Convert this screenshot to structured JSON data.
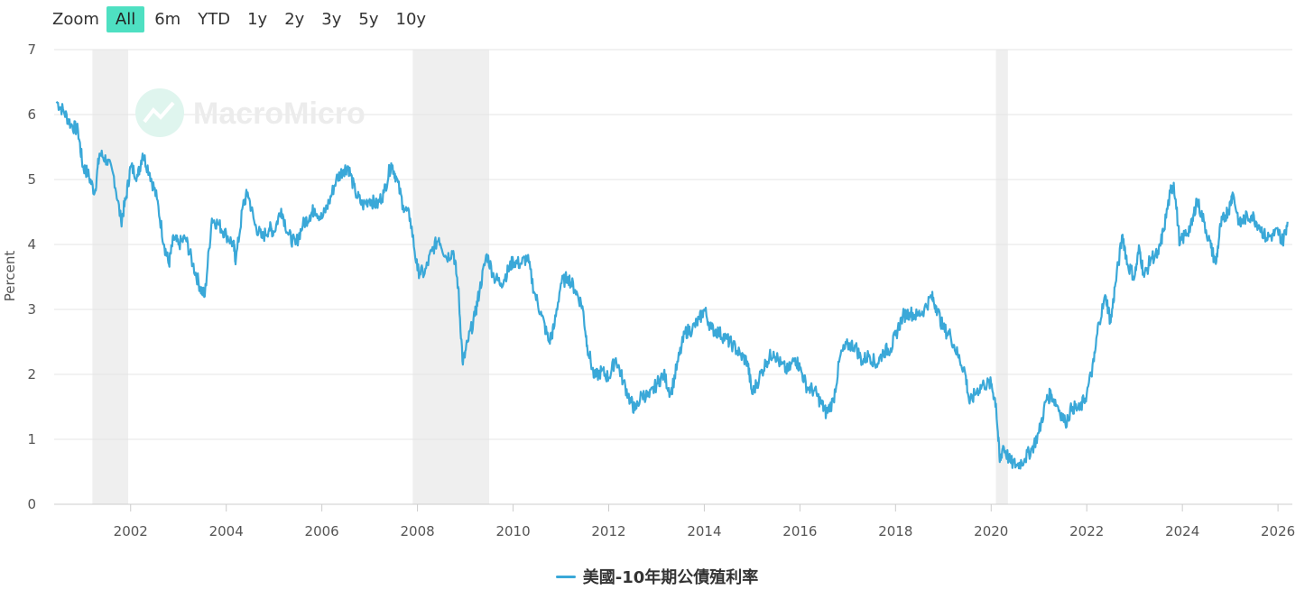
{
  "zoom": {
    "label": "Zoom",
    "options": [
      "All",
      "6m",
      "YTD",
      "1y",
      "2y",
      "3y",
      "5y",
      "10y"
    ],
    "selected": "All"
  },
  "watermark": {
    "text": "MacroMicro"
  },
  "chart_data": {
    "type": "line",
    "title": "",
    "ylabel": "Percent",
    "xlabel": "",
    "ylim": [
      0,
      7
    ],
    "xlim": [
      2000.4,
      2026.3
    ],
    "yticks": [
      0,
      1,
      2,
      3,
      4,
      5,
      6,
      7
    ],
    "xticks": [
      2002,
      2004,
      2006,
      2008,
      2010,
      2012,
      2014,
      2016,
      2018,
      2020,
      2022,
      2024,
      2026
    ],
    "grid": true,
    "legend_position": "bottom-center",
    "recession_bands": [
      [
        2001.2,
        2001.95
      ],
      [
        2007.9,
        2009.5
      ],
      [
        2020.1,
        2020.35
      ]
    ],
    "series": [
      {
        "name": "美國-10年期公債殖利率",
        "color": "#3aa8d8",
        "points": [
          [
            2000.45,
            6.2
          ],
          [
            2000.6,
            6.05
          ],
          [
            2000.75,
            5.85
          ],
          [
            2000.9,
            5.75
          ],
          [
            2001.0,
            5.2
          ],
          [
            2001.1,
            5.1
          ],
          [
            2001.25,
            4.8
          ],
          [
            2001.35,
            5.4
          ],
          [
            2001.5,
            5.3
          ],
          [
            2001.65,
            5.05
          ],
          [
            2001.8,
            4.35
          ],
          [
            2001.9,
            4.7
          ],
          [
            2002.0,
            5.2
          ],
          [
            2002.15,
            5.05
          ],
          [
            2002.25,
            5.4
          ],
          [
            2002.4,
            5.1
          ],
          [
            2002.55,
            4.7
          ],
          [
            2002.7,
            4.0
          ],
          [
            2002.8,
            3.7
          ],
          [
            2002.9,
            4.1
          ],
          [
            2003.0,
            4.0
          ],
          [
            2003.15,
            4.1
          ],
          [
            2003.3,
            3.7
          ],
          [
            2003.45,
            3.35
          ],
          [
            2003.55,
            3.2
          ],
          [
            2003.7,
            4.4
          ],
          [
            2003.85,
            4.3
          ],
          [
            2004.0,
            4.15
          ],
          [
            2004.15,
            4.0
          ],
          [
            2004.2,
            3.75
          ],
          [
            2004.35,
            4.6
          ],
          [
            2004.45,
            4.8
          ],
          [
            2004.6,
            4.3
          ],
          [
            2004.75,
            4.1
          ],
          [
            2004.9,
            4.25
          ],
          [
            2005.0,
            4.2
          ],
          [
            2005.15,
            4.55
          ],
          [
            2005.3,
            4.15
          ],
          [
            2005.45,
            4.0
          ],
          [
            2005.6,
            4.3
          ],
          [
            2005.75,
            4.45
          ],
          [
            2005.85,
            4.55
          ],
          [
            2006.0,
            4.4
          ],
          [
            2006.15,
            4.65
          ],
          [
            2006.3,
            5.0
          ],
          [
            2006.45,
            5.15
          ],
          [
            2006.55,
            5.2
          ],
          [
            2006.7,
            4.8
          ],
          [
            2006.85,
            4.6
          ],
          [
            2007.0,
            4.7
          ],
          [
            2007.15,
            4.6
          ],
          [
            2007.3,
            4.8
          ],
          [
            2007.45,
            5.25
          ],
          [
            2007.55,
            5.05
          ],
          [
            2007.7,
            4.6
          ],
          [
            2007.85,
            4.4
          ],
          [
            2008.0,
            3.6
          ],
          [
            2008.15,
            3.55
          ],
          [
            2008.3,
            3.9
          ],
          [
            2008.45,
            4.1
          ],
          [
            2008.6,
            3.8
          ],
          [
            2008.75,
            3.9
          ],
          [
            2008.85,
            3.35
          ],
          [
            2008.95,
            2.15
          ],
          [
            2009.05,
            2.5
          ],
          [
            2009.2,
            2.9
          ],
          [
            2009.3,
            3.3
          ],
          [
            2009.45,
            3.85
          ],
          [
            2009.6,
            3.5
          ],
          [
            2009.75,
            3.4
          ],
          [
            2009.9,
            3.6
          ],
          [
            2010.0,
            3.75
          ],
          [
            2010.15,
            3.7
          ],
          [
            2010.3,
            3.8
          ],
          [
            2010.45,
            3.25
          ],
          [
            2010.6,
            2.9
          ],
          [
            2010.75,
            2.5
          ],
          [
            2010.85,
            2.7
          ],
          [
            2011.0,
            3.4
          ],
          [
            2011.15,
            3.5
          ],
          [
            2011.3,
            3.3
          ],
          [
            2011.45,
            3.05
          ],
          [
            2011.55,
            2.45
          ],
          [
            2011.7,
            1.95
          ],
          [
            2011.85,
            2.05
          ],
          [
            2012.0,
            1.95
          ],
          [
            2012.15,
            2.25
          ],
          [
            2012.3,
            1.9
          ],
          [
            2012.45,
            1.6
          ],
          [
            2012.55,
            1.45
          ],
          [
            2012.7,
            1.7
          ],
          [
            2012.85,
            1.65
          ],
          [
            2013.0,
            1.85
          ],
          [
            2013.15,
            2.0
          ],
          [
            2013.3,
            1.7
          ],
          [
            2013.45,
            2.2
          ],
          [
            2013.6,
            2.65
          ],
          [
            2013.75,
            2.7
          ],
          [
            2013.9,
            2.85
          ],
          [
            2014.0,
            3.0
          ],
          [
            2014.15,
            2.7
          ],
          [
            2014.3,
            2.65
          ],
          [
            2014.45,
            2.55
          ],
          [
            2014.6,
            2.45
          ],
          [
            2014.75,
            2.3
          ],
          [
            2014.9,
            2.2
          ],
          [
            2015.0,
            1.7
          ],
          [
            2015.15,
            1.95
          ],
          [
            2015.3,
            2.2
          ],
          [
            2015.45,
            2.35
          ],
          [
            2015.6,
            2.15
          ],
          [
            2015.75,
            2.05
          ],
          [
            2015.9,
            2.25
          ],
          [
            2016.0,
            2.1
          ],
          [
            2016.15,
            1.8
          ],
          [
            2016.3,
            1.75
          ],
          [
            2016.45,
            1.55
          ],
          [
            2016.55,
            1.4
          ],
          [
            2016.7,
            1.6
          ],
          [
            2016.85,
            2.3
          ],
          [
            2017.0,
            2.45
          ],
          [
            2017.15,
            2.45
          ],
          [
            2017.3,
            2.2
          ],
          [
            2017.45,
            2.3
          ],
          [
            2017.6,
            2.15
          ],
          [
            2017.75,
            2.35
          ],
          [
            2017.9,
            2.4
          ],
          [
            2018.0,
            2.6
          ],
          [
            2018.15,
            2.9
          ],
          [
            2018.3,
            2.95
          ],
          [
            2018.45,
            2.9
          ],
          [
            2018.6,
            3.0
          ],
          [
            2018.75,
            3.2
          ],
          [
            2018.85,
            3.05
          ],
          [
            2019.0,
            2.7
          ],
          [
            2019.15,
            2.6
          ],
          [
            2019.3,
            2.3
          ],
          [
            2019.45,
            2.05
          ],
          [
            2019.55,
            1.55
          ],
          [
            2019.7,
            1.75
          ],
          [
            2019.85,
            1.85
          ],
          [
            2020.0,
            1.85
          ],
          [
            2020.1,
            1.55
          ],
          [
            2020.18,
            0.65
          ],
          [
            2020.25,
            0.9
          ],
          [
            2020.4,
            0.65
          ],
          [
            2020.55,
            0.6
          ],
          [
            2020.7,
            0.7
          ],
          [
            2020.85,
            0.85
          ],
          [
            2021.0,
            1.1
          ],
          [
            2021.15,
            1.6
          ],
          [
            2021.25,
            1.7
          ],
          [
            2021.4,
            1.5
          ],
          [
            2021.55,
            1.25
          ],
          [
            2021.7,
            1.5
          ],
          [
            2021.85,
            1.45
          ],
          [
            2022.0,
            1.7
          ],
          [
            2022.15,
            2.2
          ],
          [
            2022.25,
            2.8
          ],
          [
            2022.4,
            3.2
          ],
          [
            2022.5,
            2.8
          ],
          [
            2022.6,
            3.4
          ],
          [
            2022.75,
            4.15
          ],
          [
            2022.85,
            3.7
          ],
          [
            2023.0,
            3.5
          ],
          [
            2023.1,
            3.95
          ],
          [
            2023.2,
            3.5
          ],
          [
            2023.35,
            3.8
          ],
          [
            2023.5,
            3.85
          ],
          [
            2023.6,
            4.2
          ],
          [
            2023.75,
            4.8
          ],
          [
            2023.82,
            4.95
          ],
          [
            2023.95,
            4.0
          ],
          [
            2024.05,
            4.15
          ],
          [
            2024.2,
            4.3
          ],
          [
            2024.3,
            4.7
          ],
          [
            2024.45,
            4.35
          ],
          [
            2024.6,
            3.95
          ],
          [
            2024.7,
            3.7
          ],
          [
            2024.8,
            4.3
          ],
          [
            2024.9,
            4.45
          ],
          [
            2025.0,
            4.6
          ],
          [
            2025.05,
            4.8
          ],
          [
            2025.2,
            4.3
          ],
          [
            2025.3,
            4.4
          ],
          [
            2025.45,
            4.45
          ],
          [
            2025.6,
            4.3
          ],
          [
            2025.75,
            4.1
          ],
          [
            2025.9,
            4.15
          ],
          [
            2026.0,
            4.2
          ],
          [
            2026.1,
            4.05
          ],
          [
            2026.2,
            4.35
          ]
        ]
      }
    ]
  }
}
